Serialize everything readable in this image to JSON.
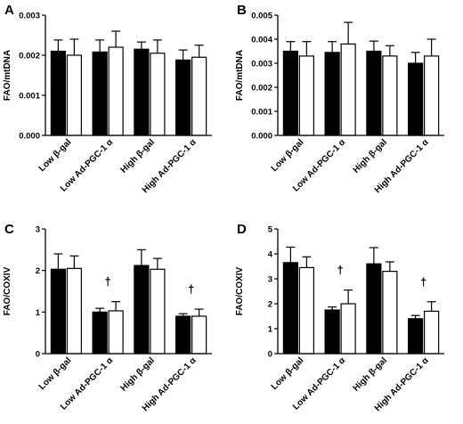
{
  "chart_data": [
    {
      "panel": "A",
      "type": "bar",
      "ylabel": "FAO/mtDNA",
      "ylim": [
        0,
        0.003
      ],
      "yticks": [
        "0.000",
        "0.001",
        "0.002",
        "0.003"
      ],
      "categories": [
        "Low β-gal",
        "Low Ad-PGC-1 α",
        "High β-gal",
        "High Ad-PGC-1 α"
      ],
      "series": [
        {
          "fill": "#000000",
          "values": [
            0.0021,
            0.00208,
            0.00215,
            0.00188
          ],
          "errors": [
            0.00028,
            0.0003,
            0.00018,
            0.00025
          ]
        },
        {
          "fill": "#ffffff",
          "values": [
            0.002,
            0.0022,
            0.00205,
            0.00195
          ],
          "errors": [
            0.0004,
            0.0004,
            0.00033,
            0.0003
          ]
        }
      ],
      "annotations": [
        "",
        "",
        "",
        ""
      ]
    },
    {
      "panel": "B",
      "type": "bar",
      "ylabel": "FAO/mtDNA",
      "ylim": [
        0,
        0.005
      ],
      "yticks": [
        "0.000",
        "0.001",
        "0.002",
        "0.003",
        "0.004",
        "0.005"
      ],
      "categories": [
        "Low β-gal",
        "Low Ad-PGC-1 α",
        "High β-gal",
        "High Ad-PGC-1 α"
      ],
      "series": [
        {
          "fill": "#000000",
          "values": [
            0.0035,
            0.00345,
            0.0035,
            0.003
          ],
          "errors": [
            0.0004,
            0.00045,
            0.00042,
            0.00045
          ]
        },
        {
          "fill": "#ffffff",
          "values": [
            0.0033,
            0.0038,
            0.0033,
            0.0033
          ],
          "errors": [
            0.0006,
            0.0009,
            0.00043,
            0.0007
          ]
        }
      ],
      "annotations": [
        "",
        "",
        "",
        ""
      ]
    },
    {
      "panel": "C",
      "type": "bar",
      "ylabel": "FAO/COXIV",
      "ylim": [
        0,
        3
      ],
      "yticks": [
        "0",
        "1",
        "2",
        "3"
      ],
      "categories": [
        "Low β-gal",
        "Low Ad-PGC-1 α",
        "High β-gal",
        "High Ad-PGC-1 α"
      ],
      "series": [
        {
          "fill": "#000000",
          "values": [
            2.03,
            1.0,
            2.12,
            0.9
          ],
          "errors": [
            0.37,
            0.09,
            0.38,
            0.06
          ]
        },
        {
          "fill": "#ffffff",
          "values": [
            2.05,
            1.03,
            2.03,
            0.9
          ],
          "errors": [
            0.3,
            0.22,
            0.26,
            0.17
          ]
        }
      ],
      "annotations": [
        "",
        "†",
        "",
        "†"
      ]
    },
    {
      "panel": "D",
      "type": "bar",
      "ylabel": "FAO/COXIV",
      "ylim": [
        0,
        5
      ],
      "yticks": [
        "0",
        "1",
        "2",
        "3",
        "4",
        "5"
      ],
      "categories": [
        "Low β-gal",
        "Low Ad-PGC-1 α",
        "High β-gal",
        "High Ad-PGC-1 α"
      ],
      "series": [
        {
          "fill": "#000000",
          "values": [
            3.65,
            1.75,
            3.6,
            1.4
          ],
          "errors": [
            0.62,
            0.12,
            0.65,
            0.13
          ]
        },
        {
          "fill": "#ffffff",
          "values": [
            3.45,
            2.0,
            3.3,
            1.7
          ],
          "errors": [
            0.43,
            0.55,
            0.38,
            0.38
          ]
        }
      ],
      "annotations": [
        "",
        "†",
        "",
        "†"
      ]
    }
  ]
}
